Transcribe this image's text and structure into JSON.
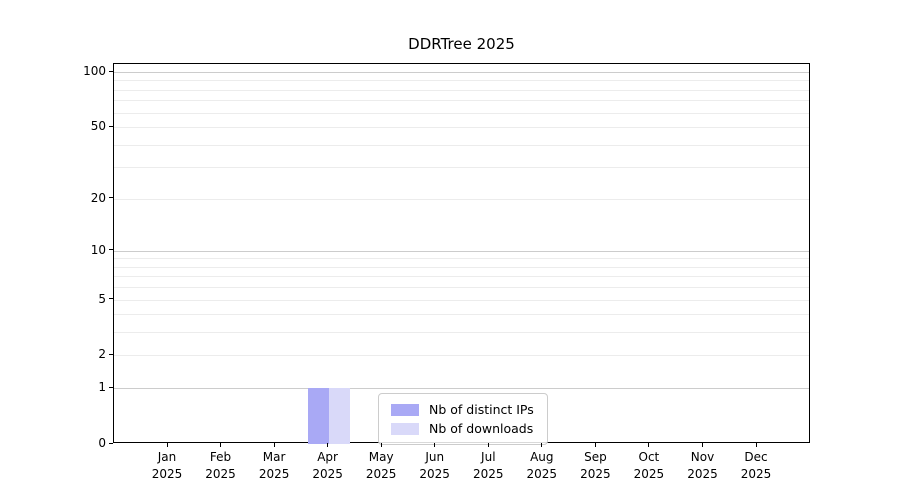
{
  "figure": {
    "background": "#ffffff"
  },
  "chart_data": {
    "type": "bar",
    "title": "DDRTree 2025",
    "xlabel": "",
    "ylabel": "",
    "categories": [
      "Jan",
      "Feb",
      "Mar",
      "Apr",
      "May",
      "Jun",
      "Jul",
      "Aug",
      "Sep",
      "Oct",
      "Nov",
      "Dec"
    ],
    "category_year": "2025",
    "series": [
      {
        "name": "Nb of distinct IPs",
        "color": "#a9a9f5",
        "values": [
          0,
          0,
          0,
          1,
          0,
          0,
          0,
          0,
          0,
          0,
          0,
          0
        ]
      },
      {
        "name": "Nb of downloads",
        "color": "#d9d9f9",
        "values": [
          0,
          0,
          0,
          1,
          0,
          0,
          0,
          0,
          0,
          0,
          0,
          0
        ]
      }
    ],
    "y_axis": {
      "scale": "log1p",
      "labeled_ticks": [
        0,
        1,
        2,
        5,
        10,
        20,
        50,
        100
      ],
      "max": 100,
      "major_gridlines": [
        1,
        10,
        100
      ],
      "minor_gridlines": [
        2,
        3,
        4,
        5,
        6,
        7,
        8,
        9,
        20,
        30,
        40,
        50,
        60,
        70,
        80,
        90
      ]
    },
    "grid": true,
    "legend_position": "bottom-center",
    "colors": {
      "grid_major": "#cccccc",
      "grid_minor": "#ececec",
      "axis": "#000000",
      "text": "#000000",
      "legend_border": "#cccccc"
    }
  }
}
